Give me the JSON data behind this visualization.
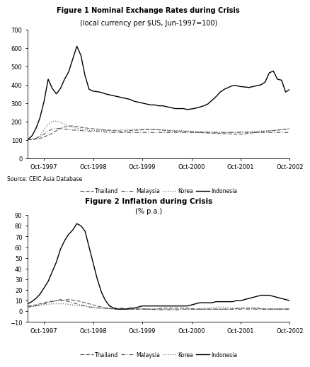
{
  "fig1_title": "Figure 1 Nominal Exchange Rates during Crisis",
  "fig1_subtitle": "(local currency per $US, Jun-1997=100)",
  "fig2_title": "Figure 2 Inflation during Crisis",
  "fig2_subtitle": "(% p.a.)",
  "source_text": "Source: CEIC Asia Database",
  "xtick_labels": [
    "Oct-1997",
    "Oct-1998",
    "Oct-1999",
    "Oct-2000",
    "Oct-2001",
    "Oct-2002"
  ],
  "xtick_pos": [
    4,
    16,
    28,
    40,
    52,
    64
  ],
  "fig1_ylim": [
    0,
    700
  ],
  "fig1_yticks": [
    0,
    100,
    200,
    300,
    400,
    500,
    600,
    700
  ],
  "fig2_ylim": [
    -10,
    90
  ],
  "fig2_yticks": [
    -10,
    0,
    10,
    20,
    30,
    40,
    50,
    60,
    70,
    80,
    90
  ],
  "gray": "#555555",
  "black": "#000000",
  "th_fx": [
    100,
    101,
    103,
    108,
    115,
    125,
    135,
    150,
    162,
    170,
    175,
    175,
    172,
    168,
    165,
    162,
    160,
    158,
    155,
    153,
    152,
    150,
    148,
    147,
    148,
    150,
    152,
    153,
    154,
    155,
    156,
    155,
    154,
    152,
    150,
    148,
    147,
    146,
    145,
    143,
    142,
    140,
    140,
    138,
    137,
    136,
    135,
    134,
    133,
    132,
    131,
    130,
    130,
    132,
    135,
    138,
    140,
    143,
    145,
    148,
    150,
    152,
    155,
    157,
    160
  ],
  "my_fx": [
    100,
    102,
    108,
    118,
    130,
    148,
    158,
    162,
    160,
    158,
    155,
    153,
    152,
    150,
    148,
    146,
    145,
    144,
    143,
    142,
    141,
    140,
    140,
    140,
    140,
    140,
    140,
    140,
    140,
    140,
    140,
    140,
    140,
    140,
    140,
    140,
    140,
    140,
    140,
    140,
    140,
    140,
    140,
    140,
    140,
    140,
    140,
    140,
    140,
    140,
    140,
    140,
    140,
    140,
    140,
    140,
    140,
    140,
    140,
    140,
    140,
    140,
    140,
    140,
    140
  ],
  "kr_fx": [
    100,
    103,
    110,
    120,
    155,
    185,
    200,
    202,
    195,
    185,
    175,
    168,
    162,
    158,
    155,
    152,
    150,
    150,
    150,
    150,
    151,
    152,
    153,
    154,
    155,
    156,
    157,
    158,
    158,
    158,
    157,
    156,
    155,
    154,
    153,
    152,
    151,
    150,
    149,
    148,
    147,
    146,
    145,
    144,
    143,
    142,
    141,
    140,
    140,
    140,
    141,
    142,
    143,
    144,
    145,
    146,
    147,
    148,
    149,
    150,
    151,
    153,
    155,
    157,
    160
  ],
  "id_fx": [
    100,
    120,
    160,
    220,
    310,
    430,
    380,
    350,
    380,
    430,
    470,
    540,
    610,
    560,
    450,
    375,
    365,
    362,
    358,
    350,
    345,
    340,
    335,
    330,
    325,
    320,
    310,
    305,
    300,
    295,
    290,
    290,
    285,
    285,
    280,
    275,
    270,
    270,
    270,
    265,
    268,
    272,
    278,
    285,
    295,
    315,
    335,
    360,
    375,
    385,
    395,
    395,
    390,
    388,
    385,
    390,
    395,
    400,
    415,
    465,
    475,
    430,
    425,
    360,
    375
  ],
  "th_inf": [
    5,
    5.5,
    6,
    7,
    8,
    9,
    9.5,
    10,
    10,
    10.5,
    11,
    10.5,
    10,
    9,
    8,
    7,
    6,
    5,
    4,
    3,
    2.5,
    2,
    2,
    2,
    2,
    2,
    2,
    2,
    2,
    2,
    2,
    2,
    2.5,
    3,
    3,
    3,
    3,
    3,
    3,
    3,
    2.5,
    2,
    2,
    2,
    2,
    2,
    2,
    2,
    2,
    2,
    2,
    2.5,
    3,
    3,
    3,
    3,
    3,
    2.5,
    2,
    2,
    2,
    2,
    2,
    2,
    2
  ],
  "my_inf": [
    4,
    4.5,
    5,
    6,
    7,
    8,
    9,
    10,
    11,
    10,
    9,
    8,
    7,
    6,
    5,
    4,
    3.5,
    3,
    3,
    3,
    3,
    3,
    3,
    3,
    2,
    2,
    2,
    2,
    2,
    2,
    2,
    1.5,
    1.5,
    1.5,
    1.5,
    1.5,
    1.5,
    1.5,
    2,
    2,
    2,
    2,
    2,
    2,
    2,
    2,
    2,
    2,
    2,
    2,
    2,
    2,
    2,
    2,
    2,
    2,
    2,
    2,
    2,
    2,
    2,
    2,
    2,
    2,
    2
  ],
  "kr_inf": [
    4,
    4.5,
    5,
    5.5,
    6,
    6.5,
    7,
    7,
    7,
    7,
    6.5,
    6,
    5.5,
    5,
    5,
    4.5,
    4,
    3.5,
    3,
    2.5,
    2.5,
    2.5,
    2.5,
    2.5,
    2.5,
    2.5,
    2.5,
    2.5,
    2.5,
    2.5,
    2,
    2,
    2,
    2,
    2,
    2,
    2,
    2,
    2,
    2,
    2,
    2,
    2.5,
    3,
    3,
    3.5,
    4,
    4,
    4,
    3.5,
    3,
    3,
    3,
    3,
    3,
    3,
    3,
    2.5,
    2.5,
    2.5,
    2.5,
    2.5,
    2.5,
    2.5,
    2.5
  ],
  "id_inf": [
    7,
    9,
    12,
    16,
    22,
    28,
    37,
    46,
    58,
    66,
    72,
    76,
    82,
    80,
    75,
    60,
    45,
    30,
    18,
    10,
    5,
    3,
    2,
    2,
    2,
    3,
    3,
    4,
    5,
    5,
    5,
    5,
    5,
    5,
    5,
    5,
    5,
    5,
    5,
    5,
    6,
    7,
    8,
    8,
    8,
    8,
    9,
    9,
    9,
    9,
    9,
    10,
    10,
    11,
    12,
    13,
    14,
    15,
    15,
    15,
    14,
    13,
    12,
    11,
    10
  ]
}
